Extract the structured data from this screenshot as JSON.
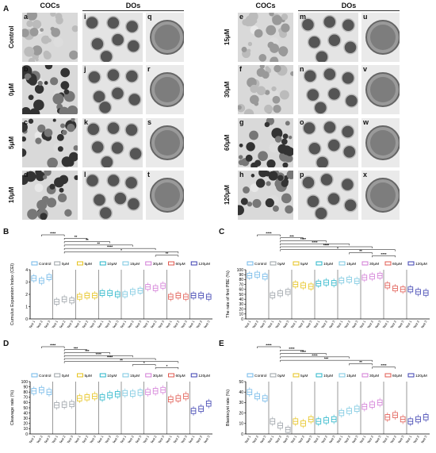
{
  "panel_letters": [
    "A",
    "B",
    "C",
    "D",
    "E"
  ],
  "micrograph_panel": {
    "left_group": {
      "coc_header": "COCs",
      "do_header": "DOs",
      "rows": [
        {
          "label": "Control",
          "coc": "a",
          "do1": "i",
          "do2": "q"
        },
        {
          "label": "0μM",
          "coc": "b",
          "do1": "j",
          "do2": "r"
        },
        {
          "label": "5μM",
          "coc": "c",
          "do1": "k",
          "do2": "s"
        },
        {
          "label": "10μM",
          "coc": "d",
          "do1": "l",
          "do2": "t"
        }
      ]
    },
    "right_group": {
      "coc_header": "COCs",
      "do_header": "DOs",
      "rows": [
        {
          "label": "15μM",
          "coc": "e",
          "do1": "m",
          "do2": "u"
        },
        {
          "label": "30μM",
          "coc": "f",
          "do1": "n",
          "do2": "v"
        },
        {
          "label": "60μM",
          "coc": "g",
          "do1": "o",
          "do2": "w"
        },
        {
          "label": "120μM",
          "coc": "h",
          "do1": "p",
          "do2": "x"
        }
      ]
    }
  },
  "colors": {
    "Control": "#6fb7e8",
    "0μM": "#9aa0a6",
    "5μM": "#e6c21a",
    "10μM": "#27b5c9",
    "15μM": "#78c7e0",
    "30μM": "#d27ad6",
    "60μM": "#e0584f",
    "120μM": "#3b3fb0"
  },
  "chart_data": [
    {
      "panel": "B",
      "type": "box",
      "ylabel": "Cumulus Expansion Index (CEI)",
      "legend": [
        "Control",
        "0μM",
        "5μM",
        "10μM",
        "15μM",
        "30μM",
        "60μM",
        "120μM"
      ],
      "groups": [
        {
          "name": "Control",
          "tests": [
            "Test 1",
            "Test 2",
            "Test 3"
          ],
          "medians": [
            3.3,
            3.1,
            3.4
          ]
        },
        {
          "name": "0μM",
          "tests": [
            "Test 1",
            "Test 2",
            "Test 3"
          ],
          "medians": [
            1.4,
            1.6,
            1.5
          ]
        },
        {
          "name": "5μM",
          "tests": [
            "Test 1",
            "Test 2",
            "Test 3"
          ],
          "medians": [
            1.8,
            1.9,
            1.9
          ]
        },
        {
          "name": "10μM",
          "tests": [
            "Test 1",
            "Test 2",
            "Test 3"
          ],
          "medians": [
            2.1,
            2.1,
            2.0
          ]
        },
        {
          "name": "15μM",
          "tests": [
            "Test 1",
            "Test 2",
            "Test 3"
          ],
          "medians": [
            2.0,
            2.2,
            2.3
          ]
        },
        {
          "name": "30μM",
          "tests": [
            "Test 1",
            "Test 2",
            "Test 3"
          ],
          "medians": [
            2.6,
            2.5,
            2.7
          ]
        },
        {
          "name": "60μM",
          "tests": [
            "Test 1",
            "Test 2",
            "Test 3"
          ],
          "medians": [
            1.8,
            1.9,
            1.8
          ]
        },
        {
          "name": "120μM",
          "tests": [
            "Test 1",
            "Test 2",
            "Test 3"
          ],
          "medians": [
            1.9,
            1.9,
            1.8
          ]
        }
      ],
      "ylim": [
        0,
        4
      ],
      "yticks": [
        "0",
        "1",
        "2",
        "3",
        "4"
      ],
      "significance": [
        {
          "from": "Control",
          "to": "0μM",
          "label": "****"
        },
        {
          "from": "0μM",
          "to": "5μM",
          "label": "**"
        },
        {
          "from": "0μM",
          "to": "10μM",
          "label": "**"
        },
        {
          "from": "0μM",
          "to": "15μM",
          "label": "**"
        },
        {
          "from": "0μM",
          "to": "30μM",
          "label": "****"
        },
        {
          "from": "0μM",
          "to": "60μM",
          "label": "*"
        },
        {
          "from": "30μM",
          "to": "60μM",
          "label": "**"
        }
      ]
    },
    {
      "panel": "C",
      "type": "box",
      "ylabel": "The rate of first PBE (%)",
      "legend": [
        "Control",
        "0μM",
        "5μM",
        "10μM",
        "15μM",
        "30μM",
        "60μM",
        "120μM"
      ],
      "groups": [
        {
          "name": "Control",
          "tests": [
            "Test 1",
            "Test 2",
            "Test 3"
          ],
          "medians": [
            88,
            90,
            86
          ]
        },
        {
          "name": "0μM",
          "tests": [
            "Test 1",
            "Test 2",
            "Test 3"
          ],
          "medians": [
            48,
            52,
            55
          ]
        },
        {
          "name": "5μM",
          "tests": [
            "Test 1",
            "Test 2",
            "Test 3"
          ],
          "medians": [
            70,
            68,
            66
          ]
        },
        {
          "name": "10μM",
          "tests": [
            "Test 1",
            "Test 2",
            "Test 3"
          ],
          "medians": [
            72,
            74,
            73
          ]
        },
        {
          "name": "15μM",
          "tests": [
            "Test 1",
            "Test 2",
            "Test 3"
          ],
          "medians": [
            78,
            80,
            77
          ]
        },
        {
          "name": "30μM",
          "tests": [
            "Test 1",
            "Test 2",
            "Test 3"
          ],
          "medians": [
            84,
            86,
            88
          ]
        },
        {
          "name": "60μM",
          "tests": [
            "Test 1",
            "Test 2",
            "Test 3"
          ],
          "medians": [
            68,
            62,
            60
          ]
        },
        {
          "name": "120μM",
          "tests": [
            "Test 1",
            "Test 2",
            "Test 3"
          ],
          "medians": [
            60,
            55,
            53
          ]
        }
      ],
      "ylim": [
        0,
        100
      ],
      "yticks": [
        "0",
        "10",
        "20",
        "30",
        "40",
        "50",
        "60",
        "70",
        "80",
        "90",
        "100"
      ],
      "significance": [
        {
          "from": "Control",
          "to": "0μM",
          "label": "****"
        },
        {
          "from": "0μM",
          "to": "5μM",
          "label": "***"
        },
        {
          "from": "0μM",
          "to": "10μM",
          "label": "****"
        },
        {
          "from": "0μM",
          "to": "15μM",
          "label": "****"
        },
        {
          "from": "0μM",
          "to": "30μM",
          "label": "****"
        },
        {
          "from": "0μM",
          "to": "60μM",
          "label": "*"
        },
        {
          "from": "15μM",
          "to": "30μM",
          "label": "**"
        },
        {
          "from": "30μM",
          "to": "60μM",
          "label": "****"
        }
      ]
    },
    {
      "panel": "D",
      "type": "box",
      "ylabel": "Cleavage rate (%)",
      "legend": [
        "Control",
        "0μM",
        "5μM",
        "10μM",
        "15μM",
        "30μM",
        "60μM",
        "120μM"
      ],
      "groups": [
        {
          "name": "Control",
          "tests": [
            "Test 1",
            "Test 2",
            "Test 3"
          ],
          "medians": [
            82,
            84,
            80
          ]
        },
        {
          "name": "0μM",
          "tests": [
            "Test 1",
            "Test 2",
            "Test 3"
          ],
          "medians": [
            55,
            56,
            57
          ]
        },
        {
          "name": "5μM",
          "tests": [
            "Test 1",
            "Test 2",
            "Test 3"
          ],
          "medians": [
            68,
            70,
            72
          ]
        },
        {
          "name": "10μM",
          "tests": [
            "Test 1",
            "Test 2",
            "Test 3"
          ],
          "medians": [
            70,
            74,
            76
          ]
        },
        {
          "name": "15μM",
          "tests": [
            "Test 1",
            "Test 2",
            "Test 3"
          ],
          "medians": [
            78,
            77,
            79
          ]
        },
        {
          "name": "30μM",
          "tests": [
            "Test 1",
            "Test 2",
            "Test 3"
          ],
          "medians": [
            80,
            82,
            84
          ]
        },
        {
          "name": "60μM",
          "tests": [
            "Test 1",
            "Test 2",
            "Test 3"
          ],
          "medians": [
            66,
            68,
            72
          ]
        },
        {
          "name": "120μM",
          "tests": [
            "Test 1",
            "Test 2",
            "Test 3"
          ],
          "medians": [
            44,
            48,
            58
          ]
        }
      ],
      "ylim": [
        0,
        100
      ],
      "yticks": [
        "0",
        "10",
        "20",
        "30",
        "40",
        "50",
        "60",
        "70",
        "80",
        "90",
        "100"
      ],
      "significance": [
        {
          "from": "Control",
          "to": "0μM",
          "label": "****"
        },
        {
          "from": "0μM",
          "to": "5μM",
          "label": "***"
        },
        {
          "from": "0μM",
          "to": "10μM",
          "label": "***"
        },
        {
          "from": "0μM",
          "to": "15μM",
          "label": "****"
        },
        {
          "from": "0μM",
          "to": "30μM",
          "label": "****"
        },
        {
          "from": "0μM",
          "to": "60μM",
          "label": "**"
        },
        {
          "from": "15μM",
          "to": "30μM",
          "label": "*"
        },
        {
          "from": "30μM",
          "to": "60μM",
          "label": "*"
        }
      ]
    },
    {
      "panel": "E",
      "type": "box",
      "ylabel": "Blastocyst rate (%)",
      "legend": [
        "Control",
        "0μM",
        "5μM",
        "10μM",
        "15μM",
        "30μM",
        "60μM",
        "120μM"
      ],
      "groups": [
        {
          "name": "Control",
          "tests": [
            "Test 1",
            "Test 2",
            "Test 3"
          ],
          "medians": [
            40,
            36,
            34
          ]
        },
        {
          "name": "0μM",
          "tests": [
            "Test 1",
            "Test 2",
            "Test 3"
          ],
          "medians": [
            12,
            8,
            4
          ]
        },
        {
          "name": "5μM",
          "tests": [
            "Test 1",
            "Test 2",
            "Test 3"
          ],
          "medians": [
            12,
            10,
            14
          ]
        },
        {
          "name": "10μM",
          "tests": [
            "Test 1",
            "Test 2",
            "Test 3"
          ],
          "medians": [
            12,
            13,
            14
          ]
        },
        {
          "name": "15μM",
          "tests": [
            "Test 1",
            "Test 2",
            "Test 3"
          ],
          "medians": [
            20,
            22,
            24
          ]
        },
        {
          "name": "30μM",
          "tests": [
            "Test 1",
            "Test 2",
            "Test 3"
          ],
          "medians": [
            26,
            28,
            30
          ]
        },
        {
          "name": "60μM",
          "tests": [
            "Test 1",
            "Test 2",
            "Test 3"
          ],
          "medians": [
            16,
            18,
            14
          ]
        },
        {
          "name": "120μM",
          "tests": [
            "Test 1",
            "Test 2",
            "Test 3"
          ],
          "medians": [
            12,
            14,
            16
          ]
        }
      ],
      "ylim": [
        0,
        50
      ],
      "yticks": [
        "0",
        "10",
        "20",
        "30",
        "40",
        "50"
      ],
      "significance": [
        {
          "from": "Control",
          "to": "0μM",
          "label": "****"
        },
        {
          "from": "0μM",
          "to": "5μM",
          "label": "****"
        },
        {
          "from": "0μM",
          "to": "10μM",
          "label": "****"
        },
        {
          "from": "0μM",
          "to": "15μM",
          "label": "****"
        },
        {
          "from": "0μM",
          "to": "30μM",
          "label": "***"
        },
        {
          "from": "15μM",
          "to": "30μM",
          "label": "**"
        },
        {
          "from": "30μM",
          "to": "60μM",
          "label": "****"
        }
      ]
    }
  ]
}
